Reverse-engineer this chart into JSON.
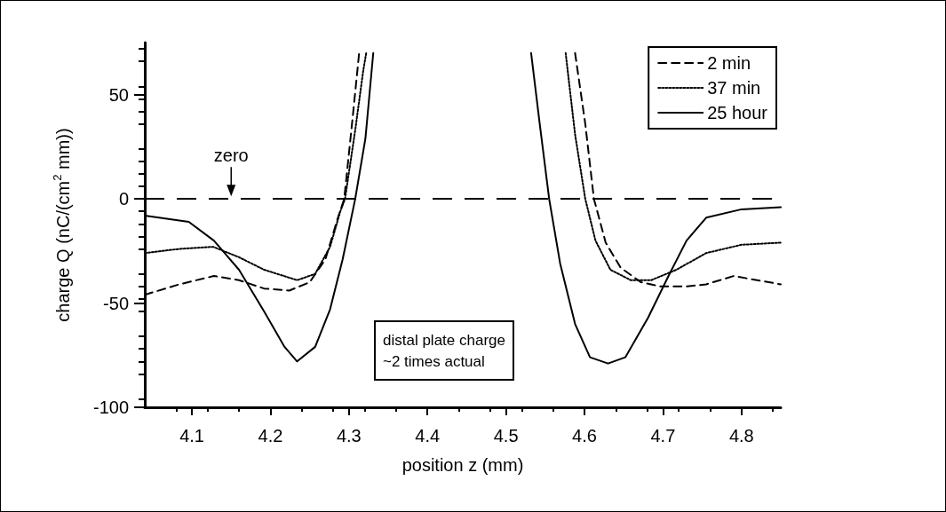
{
  "chart_data": {
    "type": "line",
    "xlabel": "position z (mm)",
    "ylabel": "charge Q (nC/(cm$^{2}$ mm))",
    "xlim": [
      4.04,
      4.85
    ],
    "xticks": [
      4.1,
      4.2,
      4.3,
      4.4,
      4.5,
      4.6,
      4.7,
      4.8
    ],
    "ylim": [
      -100,
      75
    ],
    "yticks": [
      -100,
      -50,
      0,
      50
    ],
    "grid": false,
    "legend": "top right",
    "marker": "none",
    "series": [
      {
        "name": "2 min",
        "color": "#000000",
        "line_style": "dashed",
        "x": [
          4.04,
          4.084,
          4.128,
          4.16,
          4.192,
          4.224,
          4.25,
          4.27,
          4.286,
          4.294,
          4.305,
          4.313,
          null,
          4.588,
          4.601,
          4.612,
          4.627,
          4.646,
          4.672,
          4.697,
          4.73,
          4.755,
          4.79,
          4.85
        ],
        "values": [
          -46,
          -41,
          -37,
          -39,
          -43,
          -44,
          -40,
          -29,
          -9,
          0,
          40,
          70,
          null,
          70,
          36,
          0,
          -21,
          -33,
          -40,
          -42,
          -42,
          -41,
          -37,
          -41
        ]
      },
      {
        "name": "37 min",
        "color": "#000000",
        "line_style": "dotted",
        "x": [
          4.04,
          4.084,
          4.127,
          4.16,
          4.192,
          4.234,
          4.257,
          4.276,
          4.289,
          4.295,
          4.308,
          4.318,
          4.322,
          null,
          4.576,
          4.588,
          4.601,
          4.614,
          4.633,
          4.659,
          4.685,
          4.717,
          4.755,
          4.8,
          4.85
        ],
        "values": [
          -26,
          -24,
          -23,
          -28,
          -34,
          -39,
          -36,
          -23,
          -6,
          0,
          33,
          61,
          70,
          null,
          70,
          31,
          0,
          -20,
          -34,
          -39,
          -39,
          -34,
          -26,
          -22,
          -21
        ]
      },
      {
        "name": "25 hour",
        "color": "#000000",
        "line_style": "solid",
        "x": [
          4.04,
          4.096,
          4.128,
          4.16,
          4.192,
          4.218,
          4.234,
          4.257,
          4.276,
          4.292,
          4.308,
          4.321,
          4.331,
          null,
          4.532,
          4.543,
          4.555,
          4.569,
          4.588,
          4.607,
          4.63,
          4.652,
          4.681,
          4.707,
          4.73,
          4.755,
          4.8,
          4.85
        ],
        "values": [
          -8,
          -11,
          -20,
          -34,
          -54,
          -71,
          -78,
          -71,
          -53,
          -29,
          0,
          29,
          70,
          null,
          70,
          36,
          0,
          -31,
          -60,
          -76,
          -79,
          -76,
          -57,
          -37,
          -20,
          -9,
          -5,
          -4
        ]
      }
    ],
    "ref_lines": [
      {
        "axis": "y",
        "value": 0,
        "line_style": "dashed",
        "color": "#000000"
      }
    ],
    "annotations": [
      {
        "text": "zero",
        "x": 4.15,
        "y": 0
      },
      "distal plate charge\n~2 times actual"
    ]
  }
}
